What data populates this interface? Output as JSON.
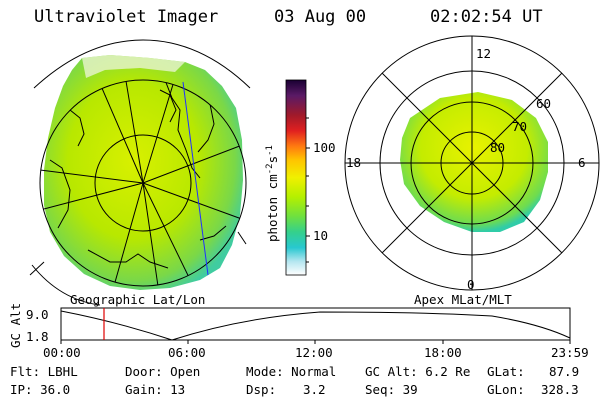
{
  "header": {
    "instrument": "Ultraviolet Imager",
    "date": "03 Aug 00",
    "time": "02:02:54 UT"
  },
  "left_map": {
    "caption": "Geographic Lat/Lon"
  },
  "colorbar": {
    "unit_label": "photon cm",
    "unit_exp1": "-2",
    "unit_mid": "s",
    "unit_exp2": "-1",
    "tick_high": "100",
    "tick_low": "10",
    "scale": "log",
    "colors_top_to_bottom": [
      "#1a0033",
      "#5a1a66",
      "#a01a2a",
      "#e02020",
      "#ff7a10",
      "#ffc400",
      "#f0f000",
      "#b4f000",
      "#6ee040",
      "#34d08c",
      "#28c8d0",
      "#b4e6f0",
      "#ffffff"
    ]
  },
  "polar_plot": {
    "caption": "Apex MLat/MLT",
    "mlt_labels": {
      "top": "12",
      "left": "18",
      "right": "6",
      "bottom": "0"
    },
    "mlat_labels": [
      "60",
      "70",
      "80"
    ]
  },
  "altitude_strip": {
    "axis_label": "GC Alt",
    "y_ticks": [
      "9.0",
      "1.8"
    ],
    "x_ticks": [
      "00:00",
      "06:00",
      "12:00",
      "18:00",
      "23:59"
    ],
    "marker_time": "02:02:54",
    "marker_color": "#e00000"
  },
  "info": {
    "row1": {
      "filter": "Flt: LBHL",
      "door": "Door: Open",
      "mode": "Mode: Normal",
      "gc_alt": "GC Alt: 6.2 Re",
      "glat": "GLat:",
      "glat_val": "87.9"
    },
    "row2": {
      "ip": "IP: 36.0",
      "gain": "Gain: 13",
      "dsp": "Dsp:",
      "dsp_val": "3.2",
      "seq": "Seq: 39",
      "glon": "GLon:",
      "glon_val": "328.3"
    }
  }
}
